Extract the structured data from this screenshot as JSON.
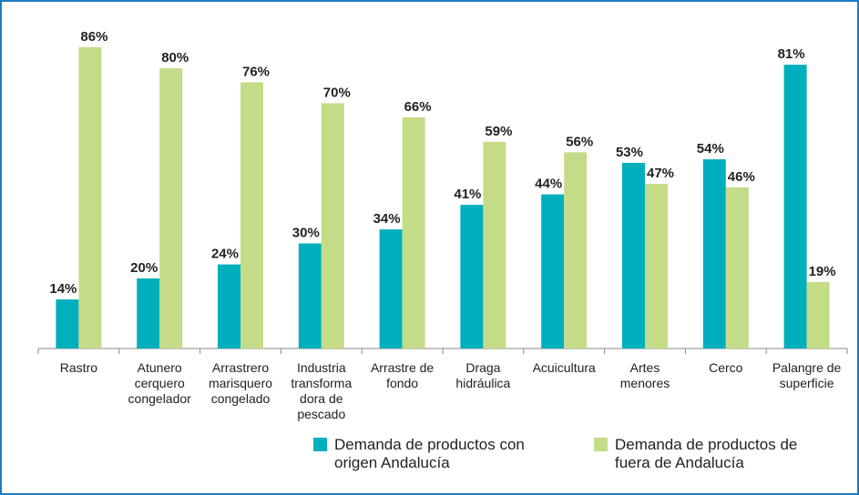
{
  "chart_data": {
    "type": "bar",
    "categories": [
      "Rastro",
      "Atunero\ncerquero\ncongelador",
      "Arrastrero\nmarisquero\ncongelado",
      "Industria\ntransforma\ndora de\npescado",
      "Arrastre de\nfondo",
      "Draga\nhidráulica",
      "Acuicultura",
      "Artes\nmenores",
      "Cerco",
      "Palangre de\nsuperficie"
    ],
    "series": [
      {
        "name": "Demanda de productos con\norigen Andalucía",
        "color": "#00afbd",
        "values": [
          14,
          20,
          24,
          30,
          34,
          41,
          44,
          53,
          54,
          81
        ],
        "value_labels": [
          "14%",
          "20%",
          "24%",
          "30%",
          "34%",
          "41%",
          "44%",
          "53%",
          "54%",
          "81%"
        ]
      },
      {
        "name": "Demanda de productos de\nfuera de Andalucía",
        "color": "#c4dc87",
        "values": [
          86,
          80,
          76,
          70,
          66,
          59,
          56,
          47,
          46,
          19
        ],
        "value_labels": [
          "86%",
          "80%",
          "76%",
          "70%",
          "66%",
          "59%",
          "56%",
          "47%",
          "46%",
          "19%"
        ]
      }
    ],
    "ylim": [
      0,
      90
    ]
  }
}
